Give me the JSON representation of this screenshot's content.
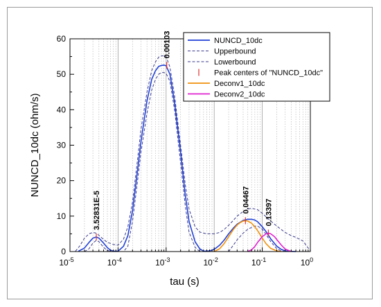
{
  "chart_data": {
    "type": "line",
    "xlabel": "tau (s)",
    "ylabel": "NUNCD_10dc (ohm/s)",
    "x_scale": "log",
    "xlim": [
      1e-05,
      1
    ],
    "ylim": [
      0,
      60
    ],
    "y_ticks": [
      0,
      10,
      20,
      30,
      40,
      50,
      60
    ],
    "x_major_ticks": [
      1e-05,
      0.0001,
      0.001,
      0.01,
      0.1,
      1
    ],
    "x_tick_labels": [
      {
        "base": "10",
        "exp": "-5"
      },
      {
        "base": "10",
        "exp": "-4"
      },
      {
        "base": "10",
        "exp": "-3"
      },
      {
        "base": "10",
        "exp": "-2"
      },
      {
        "base": "10",
        "exp": "-1"
      },
      {
        "base": "10",
        "exp": "0"
      }
    ],
    "legend_position": "top-right",
    "legend": [
      {
        "label": "NUNCD_10dc",
        "color": "#1f3fd6",
        "style": "solid"
      },
      {
        "label": "Upperbound",
        "color": "#3a3a8c",
        "style": "dashed"
      },
      {
        "label": "Lowerbound",
        "color": "#3a3a8c",
        "style": "dashed"
      },
      {
        "label": "Peak centers of \"NUNCD_10dc\"",
        "color": "#e03030",
        "style": "tick"
      },
      {
        "label": "Deconv1_10dc",
        "color": "#f0900a",
        "style": "solid"
      },
      {
        "label": "Deconv2_10dc",
        "color": "#e020d0",
        "style": "solid"
      }
    ],
    "series": [
      {
        "name": "NUNCD_10dc",
        "color": "#1f3fd6",
        "style": "solid",
        "x": [
          1.5e-05,
          2e-05,
          2.5e-05,
          3e-05,
          3.5e-05,
          4e-05,
          5e-05,
          6e-05,
          7e-05,
          8e-05,
          0.0001,
          0.00013,
          0.00016,
          0.0002,
          0.00025,
          0.0003,
          0.0004,
          0.0005,
          0.0006,
          0.0007,
          0.0008,
          0.0009,
          0.001,
          0.0012,
          0.0015,
          0.002,
          0.0025,
          0.003,
          0.004,
          0.005,
          0.006,
          0.008,
          0.01,
          0.013,
          0.016,
          0.02,
          0.025,
          0.03,
          0.04,
          0.05,
          0.06,
          0.07,
          0.08,
          0.1,
          0.12,
          0.15,
          0.2,
          0.25,
          0.3,
          0.4,
          0.5
        ],
        "y": [
          0.1,
          1.0,
          2.6,
          3.8,
          4.1,
          3.8,
          2.4,
          1.1,
          0.4,
          0.1,
          0.1,
          1.5,
          4.5,
          11.5,
          22,
          31,
          42.5,
          48.5,
          51,
          52.2,
          52.5,
          52.6,
          52.4,
          50,
          42,
          28,
          16,
          8.5,
          2.8,
          0.8,
          0.1,
          0.2,
          0.6,
          1.8,
          3.2,
          5.0,
          6.6,
          7.7,
          8.8,
          9.1,
          9.1,
          8.9,
          8.4,
          7.0,
          5.6,
          3.6,
          1.5,
          0.6,
          0.2,
          0.05,
          0
        ]
      },
      {
        "name": "Upperbound",
        "color": "#3a3a8c",
        "style": "dashed",
        "x": [
          1.3e-05,
          1.6e-05,
          2e-05,
          2.5e-05,
          3e-05,
          3.5e-05,
          4e-05,
          5e-05,
          6e-05,
          8e-05,
          0.0001,
          0.00013,
          0.00016,
          0.0002,
          0.00025,
          0.0003,
          0.0004,
          0.0005,
          0.0006,
          0.0007,
          0.0008,
          0.0009,
          0.001,
          0.0012,
          0.0015,
          0.002,
          0.0025,
          0.003,
          0.004,
          0.005,
          0.007,
          0.01,
          0.013,
          0.016,
          0.02,
          0.025,
          0.03,
          0.04,
          0.05,
          0.06,
          0.08,
          0.1,
          0.12,
          0.15,
          0.2,
          0.25,
          0.3,
          0.4,
          0.5,
          0.7,
          1.0
        ],
        "y": [
          0.1,
          1.6,
          3.8,
          5.0,
          5.4,
          5.2,
          4.6,
          3.4,
          2.6,
          2.0,
          1.8,
          3.5,
          7.0,
          14,
          25,
          34.5,
          45,
          51,
          53.5,
          54.8,
          55.2,
          55.2,
          55,
          52,
          44,
          30,
          19,
          12,
          7,
          5.5,
          5,
          5,
          5.4,
          6.2,
          7.4,
          8.8,
          10,
          11.3,
          12,
          12.2,
          11.8,
          10.8,
          9.8,
          8.6,
          7.2,
          6.2,
          5.4,
          4.5,
          4.0,
          3.0,
          0.2
        ]
      },
      {
        "name": "Lowerbound",
        "color": "#3a3a8c",
        "style": "dashed",
        "x": [
          2e-05,
          2.5e-05,
          3e-05,
          3.5e-05,
          4e-05,
          5e-05,
          6e-05,
          8e-05,
          0.00013,
          0.00016,
          0.0002,
          0.00025,
          0.0003,
          0.0004,
          0.0005,
          0.0006,
          0.0007,
          0.0008,
          0.0009,
          0.001,
          0.0012,
          0.0015,
          0.002,
          0.0025,
          0.003,
          0.004,
          0.005,
          0.02,
          0.025,
          0.03,
          0.04,
          0.05,
          0.06,
          0.07,
          0.08,
          0.1,
          0.12,
          0.15,
          0.2,
          0.25,
          0.3
        ],
        "y": [
          0,
          0.8,
          2.4,
          3.1,
          2.8,
          1.2,
          0.3,
          0,
          0,
          1.5,
          8.5,
          19,
          28,
          39,
          45.5,
          48.5,
          50,
          50.5,
          50.5,
          50.2,
          48,
          40,
          25,
          13,
          5.5,
          1.2,
          0,
          0,
          1.8,
          3.3,
          5.2,
          6.3,
          6.8,
          7.2,
          7.2,
          6.3,
          4.8,
          2.8,
          0.8,
          0.2,
          0
        ]
      },
      {
        "name": "Deconv1_10dc",
        "color": "#f0900a",
        "style": "solid",
        "x": [
          0.01,
          0.013,
          0.016,
          0.02,
          0.025,
          0.03,
          0.035,
          0.04,
          0.045,
          0.05,
          0.06,
          0.07,
          0.08,
          0.1,
          0.12,
          0.15,
          0.2,
          0.25
        ],
        "y": [
          0,
          0.8,
          2.2,
          4.2,
          6.2,
          7.5,
          8.2,
          8.6,
          8.7,
          8.6,
          8.0,
          7.0,
          5.9,
          3.8,
          2.2,
          0.9,
          0.2,
          0
        ]
      },
      {
        "name": "Deconv2_10dc",
        "color": "#e020d0",
        "style": "solid",
        "x": [
          0.05,
          0.06,
          0.07,
          0.08,
          0.1,
          0.12,
          0.134,
          0.15,
          0.18,
          0.2,
          0.25,
          0.3,
          0.4
        ],
        "y": [
          0,
          0.5,
          1.4,
          2.6,
          4.2,
          5.0,
          5.2,
          5.0,
          4.2,
          3.4,
          1.8,
          0.7,
          0
        ]
      }
    ],
    "peak_centers": [
      {
        "x": 3.52831e-05,
        "y": 4.1,
        "label": "3.52831E-5"
      },
      {
        "x": 0.00103,
        "y": 52.5,
        "label": "0.00103"
      },
      {
        "x": 0.04467,
        "y": 8.7,
        "label": "0.04467"
      },
      {
        "x": 0.13397,
        "y": 5.2,
        "label": "0.13397"
      }
    ]
  }
}
